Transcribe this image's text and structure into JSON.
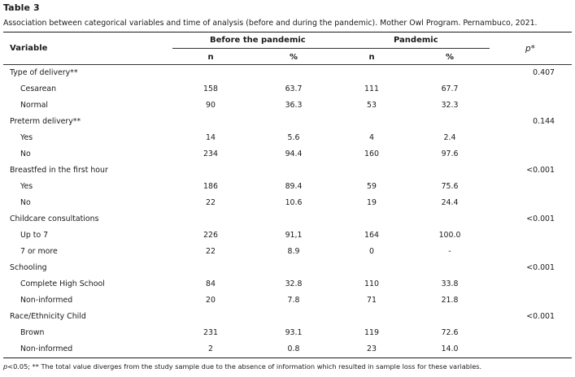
{
  "table": {
    "label": "Table 3",
    "caption": "Association between categorical variables and time of analysis (before and during the pandemic). Mother Owl Program. Pernambuco, 2021.",
    "header": {
      "variable": "Variable",
      "before": "Before the pandemic",
      "pandemic": "Pandemic",
      "p": "p*",
      "n": "n",
      "percent": "%"
    },
    "rows": [
      {
        "label": "Type of delivery**",
        "group": true,
        "n1": "",
        "p1": "",
        "n2": "",
        "p2": "",
        "p": "0.407"
      },
      {
        "label": "Cesarean",
        "group": false,
        "n1": "158",
        "p1": "63.7",
        "n2": "111",
        "p2": "67.7",
        "p": ""
      },
      {
        "label": "Normal",
        "group": false,
        "n1": "90",
        "p1": "36.3",
        "n2": "53",
        "p2": "32.3",
        "p": ""
      },
      {
        "label": "Preterm delivery**",
        "group": true,
        "n1": "",
        "p1": "",
        "n2": "",
        "p2": "",
        "p": "0.144"
      },
      {
        "label": "Yes",
        "group": false,
        "n1": "14",
        "p1": "5.6",
        "n2": "4",
        "p2": "2.4",
        "p": ""
      },
      {
        "label": "No",
        "group": false,
        "n1": "234",
        "p1": "94.4",
        "n2": "160",
        "p2": "97.6",
        "p": ""
      },
      {
        "label": "Breastfed in the first hour",
        "group": true,
        "n1": "",
        "p1": "",
        "n2": "",
        "p2": "",
        "p": "<0.001"
      },
      {
        "label": "Yes",
        "group": false,
        "n1": "186",
        "p1": "89.4",
        "n2": "59",
        "p2": "75.6",
        "p": ""
      },
      {
        "label": "No",
        "group": false,
        "n1": "22",
        "p1": "10.6",
        "n2": "19",
        "p2": "24.4",
        "p": ""
      },
      {
        "label": "Childcare consultations",
        "group": true,
        "n1": "",
        "p1": "",
        "n2": "",
        "p2": "",
        "p": "<0.001"
      },
      {
        "label": "Up to 7",
        "group": false,
        "n1": "226",
        "p1": "91,1",
        "n2": "164",
        "p2": "100.0",
        "p": ""
      },
      {
        "label": "7 or more",
        "group": false,
        "n1": "22",
        "p1": "8.9",
        "n2": "0",
        "p2": "-",
        "p": ""
      },
      {
        "label": "Schooling",
        "group": true,
        "n1": "",
        "p1": "",
        "n2": "",
        "p2": "",
        "p": "<0.001"
      },
      {
        "label": "Complete High School",
        "group": false,
        "n1": "84",
        "p1": "32.8",
        "n2": "110",
        "p2": "33.8",
        "p": ""
      },
      {
        "label": "Non-informed",
        "group": false,
        "n1": "20",
        "p1": "7.8",
        "n2": "71",
        "p2": "21.8",
        "p": ""
      },
      {
        "label": "Race/Ethnicity Child",
        "group": true,
        "n1": "",
        "p1": "",
        "n2": "",
        "p2": "",
        "p": "<0.001"
      },
      {
        "label": "Brown",
        "group": false,
        "n1": "231",
        "p1": "93.1",
        "n2": "119",
        "p2": "72.6",
        "p": ""
      },
      {
        "label": "Non-informed",
        "group": false,
        "n1": "2",
        "p1": "0.8",
        "n2": "23",
        "p2": "14.0",
        "p": ""
      }
    ],
    "footnote_p": "p",
    "footnote_rest": "<0.05; ** The total value diverges from the study sample due to the absence of information which resulted in sample loss for these variables."
  }
}
